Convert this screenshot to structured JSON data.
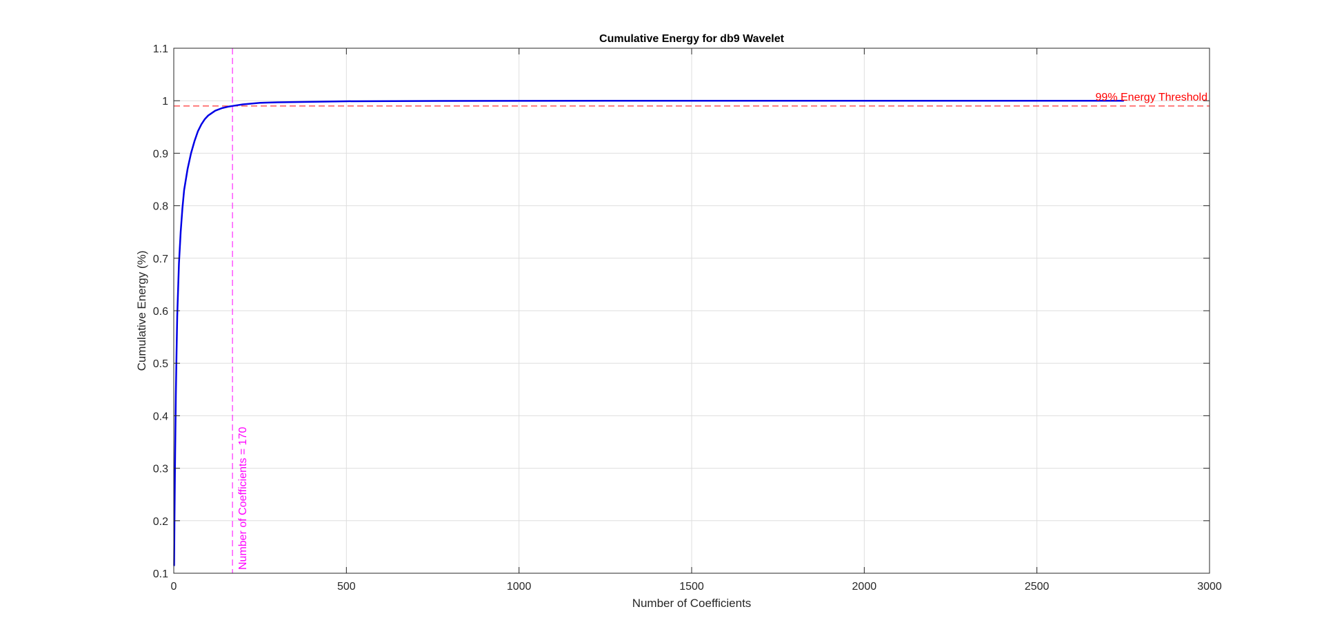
{
  "chart_data": {
    "type": "line",
    "title": "Cumulative Energy for db9 Wavelet",
    "xlabel": "Number of Coefficients",
    "ylabel": "Cumulative Energy (%)",
    "xlim": [
      0,
      3000
    ],
    "ylim": [
      0.1,
      1.1
    ],
    "xticks": [
      0,
      500,
      1000,
      1500,
      2000,
      2500,
      3000
    ],
    "yticks": [
      0.1,
      0.2,
      0.3,
      0.4,
      0.5,
      0.6,
      0.7,
      0.8,
      0.9,
      1,
      1.1
    ],
    "xtick_labels": [
      "0",
      "500",
      "1000",
      "1500",
      "2000",
      "2500",
      "3000"
    ],
    "ytick_labels": [
      "0.1",
      "0.2",
      "0.3",
      "0.4",
      "0.5",
      "0.6",
      "0.7",
      "0.8",
      "0.9",
      "1",
      "1.1"
    ],
    "grid": true,
    "series": [
      {
        "color": "#0000e6",
        "x": [
          1,
          2,
          4,
          6,
          8,
          10,
          15,
          20,
          25,
          30,
          40,
          50,
          60,
          70,
          80,
          90,
          100,
          120,
          140,
          160,
          170,
          200,
          250,
          300,
          400,
          500,
          700,
          1000,
          1500,
          2000,
          2500,
          2750
        ],
        "y": [
          0.115,
          0.2,
          0.33,
          0.44,
          0.52,
          0.59,
          0.69,
          0.75,
          0.795,
          0.83,
          0.87,
          0.9,
          0.923,
          0.942,
          0.955,
          0.965,
          0.972,
          0.981,
          0.986,
          0.989,
          0.99,
          0.993,
          0.996,
          0.997,
          0.998,
          0.999,
          0.9995,
          0.9998,
          0.9999,
          1.0,
          1.0,
          1.0
        ]
      }
    ],
    "threshold": {
      "y": 0.99,
      "color": "#ff0000",
      "label": "99% Energy Threshold"
    },
    "marker_line": {
      "x": 170,
      "color": "#ff00ff",
      "label": "Number of Coefficients = 170"
    }
  }
}
